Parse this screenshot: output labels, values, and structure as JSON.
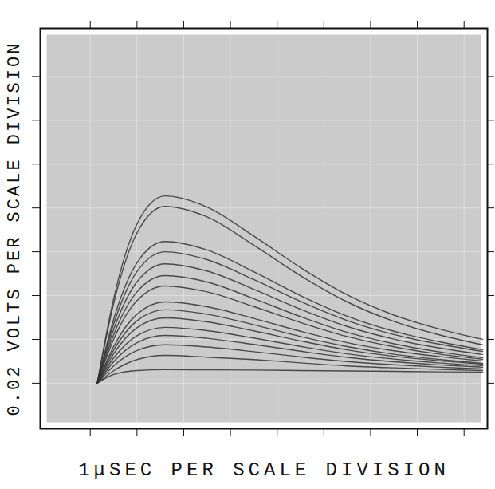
{
  "chart_data": {
    "type": "line",
    "x_label": "1μSEC PER SCALE DIVISION",
    "y_label": "0.02 VOLTS PER SCALE DIVISION",
    "x": [
      0.15,
      0.5,
      1.0,
      1.6,
      2.5,
      3.5,
      4.5,
      5.5,
      6.5,
      7.5,
      8.4
    ],
    "color": "#333333",
    "series": [
      {
        "values": [
          0,
          0.0385,
          0.0727,
          0.0855,
          0.0804,
          0.0672,
          0.0528,
          0.0403,
          0.0311,
          0.0246,
          0.02
        ]
      },
      {
        "values": [
          0,
          0.0363,
          0.0686,
          0.0807,
          0.0759,
          0.063,
          0.0491,
          0.0371,
          0.0282,
          0.0219,
          0.0175
        ]
      },
      {
        "values": [
          0,
          0.0291,
          0.055,
          0.0647,
          0.0608,
          0.0509,
          0.04,
          0.0306,
          0.0237,
          0.0188,
          0.0153
        ]
      },
      {
        "values": [
          0,
          0.027,
          0.051,
          0.06,
          0.0564,
          0.0473,
          0.0373,
          0.0286,
          0.0222,
          0.0177,
          0.0145
        ]
      },
      {
        "values": [
          0,
          0.0245,
          0.0463,
          0.0545,
          0.0512,
          0.0429,
          0.0338,
          0.0259,
          0.0201,
          0.016,
          0.0131
        ]
      },
      {
        "values": [
          0,
          0.0221,
          0.0417,
          0.0491,
          0.0462,
          0.0386,
          0.0304,
          0.0232,
          0.018,
          0.0142,
          0.0116
        ]
      },
      {
        "values": [
          0,
          0.02,
          0.0377,
          0.0444,
          0.0417,
          0.035,
          0.0277,
          0.0213,
          0.0166,
          0.0132,
          0.0109
        ]
      },
      {
        "values": [
          0,
          0.0167,
          0.0315,
          0.0371,
          0.0349,
          0.0296,
          0.0237,
          0.0185,
          0.0148,
          0.0121,
          0.0102
        ]
      },
      {
        "values": [
          0,
          0.0151,
          0.0285,
          0.0335,
          0.0315,
          0.0267,
          0.0213,
          0.0167,
          0.0132,
          0.0108,
          0.0091
        ]
      },
      {
        "values": [
          0,
          0.0134,
          0.0253,
          0.0298,
          0.028,
          0.0239,
          0.0193,
          0.0152,
          0.0123,
          0.0102,
          0.0087
        ]
      },
      {
        "values": [
          0,
          0.0115,
          0.0217,
          0.0255,
          0.024,
          0.0206,
          0.0168,
          0.0134,
          0.011,
          0.0092,
          0.008
        ]
      },
      {
        "values": [
          0,
          0.0098,
          0.0185,
          0.0218,
          0.0205,
          0.0177,
          0.0146,
          0.0118,
          0.0098,
          0.0083,
          0.0073
        ]
      },
      {
        "values": [
          0,
          0.0079,
          0.0149,
          0.0175,
          0.0165,
          0.0144,
          0.012,
          0.0099,
          0.0084,
          0.0073,
          0.0065
        ]
      },
      {
        "values": [
          0,
          0.0057,
          0.0108,
          0.0127,
          0.0119,
          0.0108,
          0.0093,
          0.0079,
          0.007,
          0.0063,
          0.0058
        ]
      },
      {
        "values": [
          0,
          0.004,
          0.0058,
          0.0062,
          0.0061,
          0.006,
          0.0058,
          0.0056,
          0.0054,
          0.0052,
          0.0051
        ]
      }
    ],
    "xlim": [
      -1.07,
      8.5
    ],
    "ylim": [
      -0.0208,
      0.162
    ],
    "xticks": [
      0,
      1,
      2,
      3,
      4,
      5,
      6,
      7,
      8
    ],
    "yticks": [
      0,
      0.02,
      0.04,
      0.06,
      0.08,
      0.1,
      0.12,
      0.14
    ],
    "grid": true,
    "tick_labels": false
  }
}
